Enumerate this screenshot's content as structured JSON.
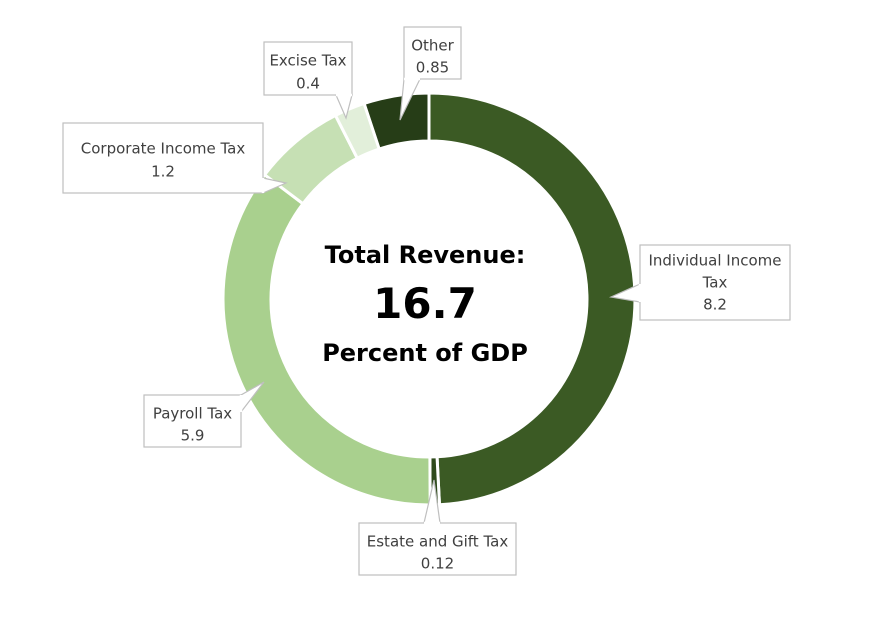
{
  "chart_data": {
    "type": "pie",
    "variant": "donut",
    "center_label": {
      "line1": "Total Revenue:",
      "value": "16.7",
      "line3": "Percent of GDP"
    },
    "slices": [
      {
        "label": "Individual Income Tax",
        "value": 8.2,
        "value_text": "8.2",
        "color": "#3b5a24"
      },
      {
        "label": "Estate and Gift Tax",
        "value": 0.12,
        "value_text": "0.12",
        "color": "#2f4a1c"
      },
      {
        "label": "Payroll Tax",
        "value": 5.9,
        "value_text": "5.9",
        "color": "#a9d08e"
      },
      {
        "label": "Corporate Income Tax",
        "value": 1.2,
        "value_text": "1.2",
        "color": "#c6e0b4"
      },
      {
        "label": "Excise Tax",
        "value": 0.4,
        "value_text": "0.4",
        "color": "#e2efda"
      },
      {
        "label": "Other",
        "value": 0.85,
        "value_text": "0.85",
        "color": "#263d17"
      }
    ]
  }
}
